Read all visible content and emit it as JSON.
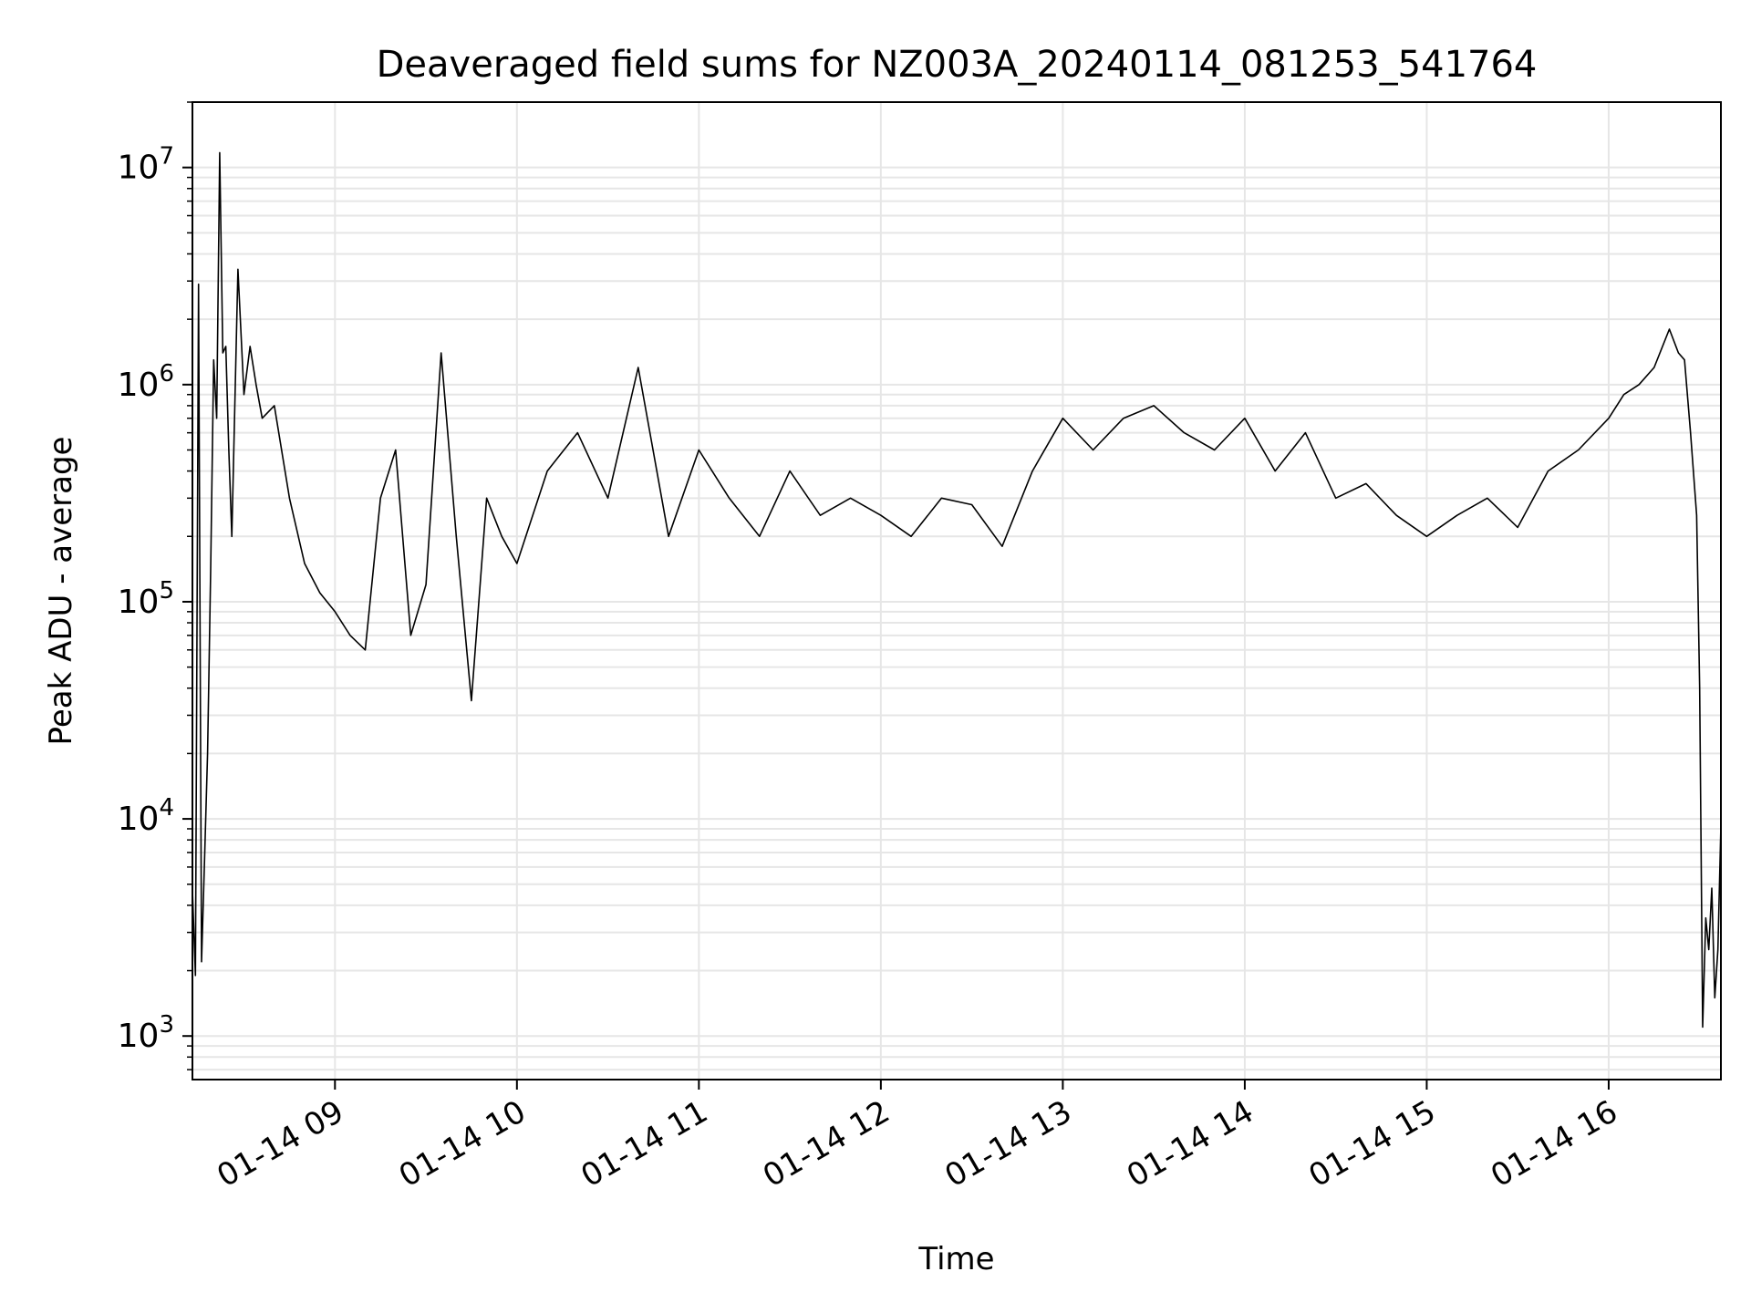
{
  "chart_data": {
    "type": "line",
    "title": "Deaveraged field sums for NZ003A_20240114_081253_541764",
    "xlabel": "Time",
    "ylabel": "Peak ADU - average",
    "yscale": "log",
    "ylim": [
      630,
      20000000
    ],
    "xlim": [
      "2024-01-14 08:13",
      "2024-01-14 16:37"
    ],
    "grid": true,
    "line_color": "#000000",
    "x_ticks": [
      {
        "value": "2024-01-14 09:00",
        "label": "01-14 09"
      },
      {
        "value": "2024-01-14 10:00",
        "label": "01-14 10"
      },
      {
        "value": "2024-01-14 11:00",
        "label": "01-14 11"
      },
      {
        "value": "2024-01-14 12:00",
        "label": "01-14 12"
      },
      {
        "value": "2024-01-14 13:00",
        "label": "01-14 13"
      },
      {
        "value": "2024-01-14 14:00",
        "label": "01-14 14"
      },
      {
        "value": "2024-01-14 15:00",
        "label": "01-14 15"
      },
      {
        "value": "2024-01-14 16:00",
        "label": "01-14 16"
      }
    ],
    "y_ticks": [
      {
        "value": 1000,
        "base": "10",
        "exp": "3"
      },
      {
        "value": 10000,
        "base": "10",
        "exp": "4"
      },
      {
        "value": 100000,
        "base": "10",
        "exp": "5"
      },
      {
        "value": 1000000,
        "base": "10",
        "exp": "6"
      },
      {
        "value": 10000000,
        "base": "10",
        "exp": "7"
      }
    ],
    "series": [
      {
        "x": [
          "2024-01-14 08:13",
          "2024-01-14 08:14",
          "2024-01-14 08:15",
          "2024-01-14 08:16",
          "2024-01-14 08:17",
          "2024-01-14 08:18",
          "2024-01-14 08:19",
          "2024-01-14 08:20",
          "2024-01-14 08:21",
          "2024-01-14 08:22",
          "2024-01-14 08:23",
          "2024-01-14 08:24",
          "2024-01-14 08:25",
          "2024-01-14 08:26",
          "2024-01-14 08:28",
          "2024-01-14 08:30",
          "2024-01-14 08:32",
          "2024-01-14 08:34",
          "2024-01-14 08:36",
          "2024-01-14 08:40",
          "2024-01-14 08:45",
          "2024-01-14 08:50",
          "2024-01-14 08:55",
          "2024-01-14 09:00",
          "2024-01-14 09:05",
          "2024-01-14 09:10",
          "2024-01-14 09:15",
          "2024-01-14 09:20",
          "2024-01-14 09:25",
          "2024-01-14 09:30",
          "2024-01-14 09:35",
          "2024-01-14 09:40",
          "2024-01-14 09:45",
          "2024-01-14 09:50",
          "2024-01-14 09:55",
          "2024-01-14 10:00",
          "2024-01-14 10:10",
          "2024-01-14 10:20",
          "2024-01-14 10:30",
          "2024-01-14 10:40",
          "2024-01-14 10:50",
          "2024-01-14 11:00",
          "2024-01-14 11:10",
          "2024-01-14 11:20",
          "2024-01-14 11:30",
          "2024-01-14 11:40",
          "2024-01-14 11:50",
          "2024-01-14 12:00",
          "2024-01-14 12:10",
          "2024-01-14 12:20",
          "2024-01-14 12:30",
          "2024-01-14 12:40",
          "2024-01-14 12:50",
          "2024-01-14 13:00",
          "2024-01-14 13:10",
          "2024-01-14 13:20",
          "2024-01-14 13:30",
          "2024-01-14 13:40",
          "2024-01-14 13:50",
          "2024-01-14 14:00",
          "2024-01-14 14:10",
          "2024-01-14 14:20",
          "2024-01-14 14:30",
          "2024-01-14 14:40",
          "2024-01-14 14:50",
          "2024-01-14 15:00",
          "2024-01-14 15:10",
          "2024-01-14 15:20",
          "2024-01-14 15:30",
          "2024-01-14 15:40",
          "2024-01-14 15:50",
          "2024-01-14 16:00",
          "2024-01-14 16:05",
          "2024-01-14 16:10",
          "2024-01-14 16:15",
          "2024-01-14 16:20",
          "2024-01-14 16:23",
          "2024-01-14 16:25",
          "2024-01-14 16:27",
          "2024-01-14 16:29",
          "2024-01-14 16:30",
          "2024-01-14 16:31",
          "2024-01-14 16:32",
          "2024-01-14 16:33",
          "2024-01-14 16:34",
          "2024-01-14 16:35",
          "2024-01-14 16:36",
          "2024-01-14 16:37"
        ],
        "y": [
          4700,
          1900,
          2900000,
          2200,
          6500,
          20000,
          140000,
          1300000,
          700000,
          11700000,
          1400000,
          1500000,
          500000,
          200000,
          3400000,
          900000,
          1500000,
          1000000,
          700000,
          800000,
          300000,
          150000,
          110000,
          90000,
          70000,
          60000,
          300000,
          500000,
          70000,
          120000,
          1400000,
          200000,
          35000,
          300000,
          200000,
          150000,
          400000,
          600000,
          300000,
          1200000,
          200000,
          500000,
          300000,
          200000,
          400000,
          250000,
          300000,
          250000,
          200000,
          300000,
          280000,
          180000,
          400000,
          700000,
          500000,
          700000,
          800000,
          600000,
          500000,
          700000,
          400000,
          600000,
          300000,
          350000,
          250000,
          200000,
          250000,
          300000,
          220000,
          400000,
          500000,
          700000,
          900000,
          1000000,
          1200000,
          1800000,
          1400000,
          1300000,
          600000,
          250000,
          40000,
          1100,
          3500,
          2500,
          4800,
          1500,
          2500,
          9400
        ]
      }
    ]
  }
}
